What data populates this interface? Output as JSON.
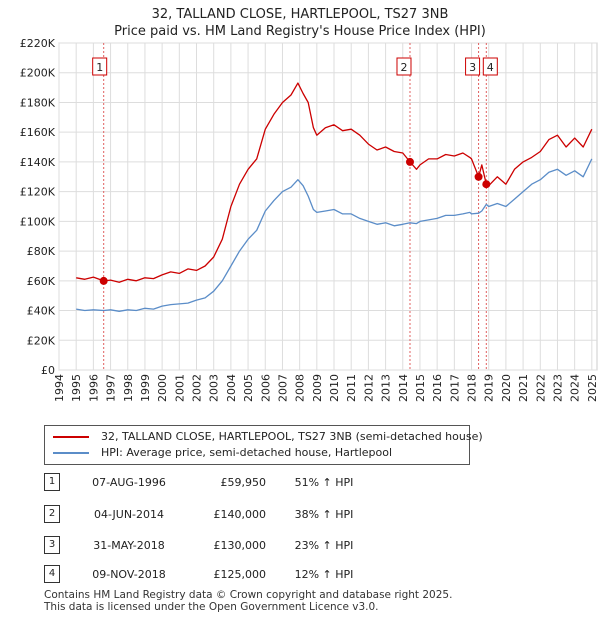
{
  "title_line1": "32, TALLAND CLOSE, HARTLEPOOL, TS27 3NB",
  "title_line2": "Price paid vs. HM Land Registry's House Price Index (HPI)",
  "chart_data": {
    "type": "line",
    "title": "Price paid vs. HM Land Registry's House Price Index (HPI)",
    "xlabel": "",
    "ylabel": "",
    "xlim": [
      1994.0,
      2025.3
    ],
    "ylim": [
      0,
      220000
    ],
    "grid": true,
    "y_ticks": [
      {
        "value": 0,
        "label": "£0"
      },
      {
        "value": 20000,
        "label": "£20K"
      },
      {
        "value": 40000,
        "label": "£40K"
      },
      {
        "value": 60000,
        "label": "£60K"
      },
      {
        "value": 80000,
        "label": "£80K"
      },
      {
        "value": 100000,
        "label": "£100K"
      },
      {
        "value": 120000,
        "label": "£120K"
      },
      {
        "value": 140000,
        "label": "£140K"
      },
      {
        "value": 160000,
        "label": "£160K"
      },
      {
        "value": 180000,
        "label": "£180K"
      },
      {
        "value": 200000,
        "label": "£200K"
      },
      {
        "value": 220000,
        "label": "£220K"
      }
    ],
    "x_ticks": [
      "1994",
      "1995",
      "1996",
      "1997",
      "1998",
      "1999",
      "2000",
      "2001",
      "2002",
      "2003",
      "2004",
      "2005",
      "2006",
      "2007",
      "2008",
      "2009",
      "2010",
      "2011",
      "2012",
      "2013",
      "2014",
      "2015",
      "2016",
      "2017",
      "2018",
      "2019",
      "2020",
      "2021",
      "2022",
      "2023",
      "2024",
      "2025"
    ],
    "series": [
      {
        "name": "32, TALLAND CLOSE, HARTLEPOOL, TS27 3NB (semi-detached house)",
        "color": "#cc0000",
        "points": [
          [
            1995.0,
            62000
          ],
          [
            1995.5,
            61000
          ],
          [
            1996.0,
            62500
          ],
          [
            1996.6,
            59950
          ],
          [
            1997.0,
            60500
          ],
          [
            1997.5,
            59000
          ],
          [
            1998.0,
            61000
          ],
          [
            1998.5,
            60000
          ],
          [
            1999.0,
            62000
          ],
          [
            1999.5,
            61500
          ],
          [
            2000.0,
            64000
          ],
          [
            2000.5,
            66000
          ],
          [
            2001.0,
            65000
          ],
          [
            2001.5,
            68000
          ],
          [
            2002.0,
            67000
          ],
          [
            2002.5,
            70000
          ],
          [
            2003.0,
            76000
          ],
          [
            2003.5,
            88000
          ],
          [
            2004.0,
            110000
          ],
          [
            2004.5,
            125000
          ],
          [
            2005.0,
            135000
          ],
          [
            2005.5,
            142000
          ],
          [
            2006.0,
            162000
          ],
          [
            2006.5,
            172000
          ],
          [
            2007.0,
            180000
          ],
          [
            2007.5,
            185000
          ],
          [
            2007.9,
            193000
          ],
          [
            2008.2,
            186000
          ],
          [
            2008.5,
            180000
          ],
          [
            2008.8,
            163000
          ],
          [
            2009.0,
            158000
          ],
          [
            2009.5,
            163000
          ],
          [
            2010.0,
            165000
          ],
          [
            2010.5,
            161000
          ],
          [
            2011.0,
            162000
          ],
          [
            2011.5,
            158000
          ],
          [
            2012.0,
            152000
          ],
          [
            2012.5,
            148000
          ],
          [
            2013.0,
            150000
          ],
          [
            2013.5,
            147000
          ],
          [
            2014.0,
            146000
          ],
          [
            2014.42,
            140000
          ],
          [
            2014.8,
            135000
          ],
          [
            2015.0,
            138000
          ],
          [
            2015.5,
            142000
          ],
          [
            2016.0,
            142000
          ],
          [
            2016.5,
            145000
          ],
          [
            2017.0,
            144000
          ],
          [
            2017.5,
            146000
          ],
          [
            2017.9,
            143000
          ],
          [
            2018.0,
            142000
          ],
          [
            2018.41,
            130000
          ],
          [
            2018.6,
            138000
          ],
          [
            2018.86,
            125000
          ],
          [
            2019.0,
            124000
          ],
          [
            2019.5,
            130000
          ],
          [
            2020.0,
            125000
          ],
          [
            2020.5,
            135000
          ],
          [
            2021.0,
            140000
          ],
          [
            2021.5,
            143000
          ],
          [
            2022.0,
            147000
          ],
          [
            2022.5,
            155000
          ],
          [
            2023.0,
            158000
          ],
          [
            2023.5,
            150000
          ],
          [
            2024.0,
            156000
          ],
          [
            2024.5,
            150000
          ],
          [
            2025.0,
            162000
          ]
        ]
      },
      {
        "name": "HPI: Average price, semi-detached house, Hartlepool",
        "color": "#5b8dc8",
        "points": [
          [
            1995.0,
            41000
          ],
          [
            1995.5,
            40000
          ],
          [
            1996.0,
            40500
          ],
          [
            1996.6,
            40000
          ],
          [
            1997.0,
            40500
          ],
          [
            1997.5,
            39500
          ],
          [
            1998.0,
            40500
          ],
          [
            1998.5,
            40000
          ],
          [
            1999.0,
            41500
          ],
          [
            1999.5,
            41000
          ],
          [
            2000.0,
            43000
          ],
          [
            2000.5,
            44000
          ],
          [
            2001.0,
            44500
          ],
          [
            2001.5,
            45000
          ],
          [
            2002.0,
            47000
          ],
          [
            2002.5,
            48500
          ],
          [
            2003.0,
            53000
          ],
          [
            2003.5,
            60000
          ],
          [
            2004.0,
            70000
          ],
          [
            2004.5,
            80000
          ],
          [
            2005.0,
            88000
          ],
          [
            2005.5,
            94000
          ],
          [
            2006.0,
            107000
          ],
          [
            2006.5,
            114000
          ],
          [
            2007.0,
            120000
          ],
          [
            2007.5,
            123000
          ],
          [
            2007.9,
            128000
          ],
          [
            2008.2,
            124000
          ],
          [
            2008.5,
            117000
          ],
          [
            2008.8,
            108000
          ],
          [
            2009.0,
            106000
          ],
          [
            2009.5,
            107000
          ],
          [
            2010.0,
            108000
          ],
          [
            2010.5,
            105000
          ],
          [
            2011.0,
            105000
          ],
          [
            2011.5,
            102000
          ],
          [
            2012.0,
            100000
          ],
          [
            2012.5,
            98000
          ],
          [
            2013.0,
            99000
          ],
          [
            2013.5,
            97000
          ],
          [
            2014.0,
            98000
          ],
          [
            2014.42,
            99000
          ],
          [
            2014.8,
            98500
          ],
          [
            2015.0,
            100000
          ],
          [
            2015.5,
            101000
          ],
          [
            2016.0,
            102000
          ],
          [
            2016.5,
            104000
          ],
          [
            2017.0,
            104000
          ],
          [
            2017.5,
            105000
          ],
          [
            2017.9,
            106000
          ],
          [
            2018.0,
            105000
          ],
          [
            2018.41,
            105500
          ],
          [
            2018.6,
            107000
          ],
          [
            2018.86,
            111500
          ],
          [
            2019.0,
            110000
          ],
          [
            2019.5,
            112000
          ],
          [
            2020.0,
            110000
          ],
          [
            2020.5,
            115000
          ],
          [
            2021.0,
            120000
          ],
          [
            2021.5,
            125000
          ],
          [
            2022.0,
            128000
          ],
          [
            2022.5,
            133000
          ],
          [
            2023.0,
            135000
          ],
          [
            2023.5,
            131000
          ],
          [
            2024.0,
            134000
          ],
          [
            2024.5,
            130000
          ],
          [
            2025.0,
            142000
          ]
        ]
      }
    ],
    "sales": [
      {
        "label": "1",
        "x": 1996.6,
        "price": 59950
      },
      {
        "label": "2",
        "x": 2014.42,
        "price": 140000
      },
      {
        "label": "3",
        "x": 2018.41,
        "price": 130000
      },
      {
        "label": "4",
        "x": 2018.86,
        "price": 125000
      }
    ]
  },
  "legend": {
    "property_label": "32, TALLAND CLOSE, HARTLEPOOL, TS27 3NB (semi-detached house)",
    "hpi_label": "HPI: Average price, semi-detached house, Hartlepool"
  },
  "transactions": [
    {
      "num": "1",
      "date": "07-AUG-1996",
      "price": "£59,950",
      "hpi": "51% ↑ HPI"
    },
    {
      "num": "2",
      "date": "04-JUN-2014",
      "price": "£140,000",
      "hpi": "38% ↑ HPI"
    },
    {
      "num": "3",
      "date": "31-MAY-2018",
      "price": "£130,000",
      "hpi": "23% ↑ HPI"
    },
    {
      "num": "4",
      "date": "09-NOV-2018",
      "price": "£125,000",
      "hpi": "12% ↑ HPI"
    }
  ],
  "footer_line1": "Contains HM Land Registry data © Crown copyright and database right 2025.",
  "footer_line2": "This data is licensed under the Open Government Licence v3.0."
}
